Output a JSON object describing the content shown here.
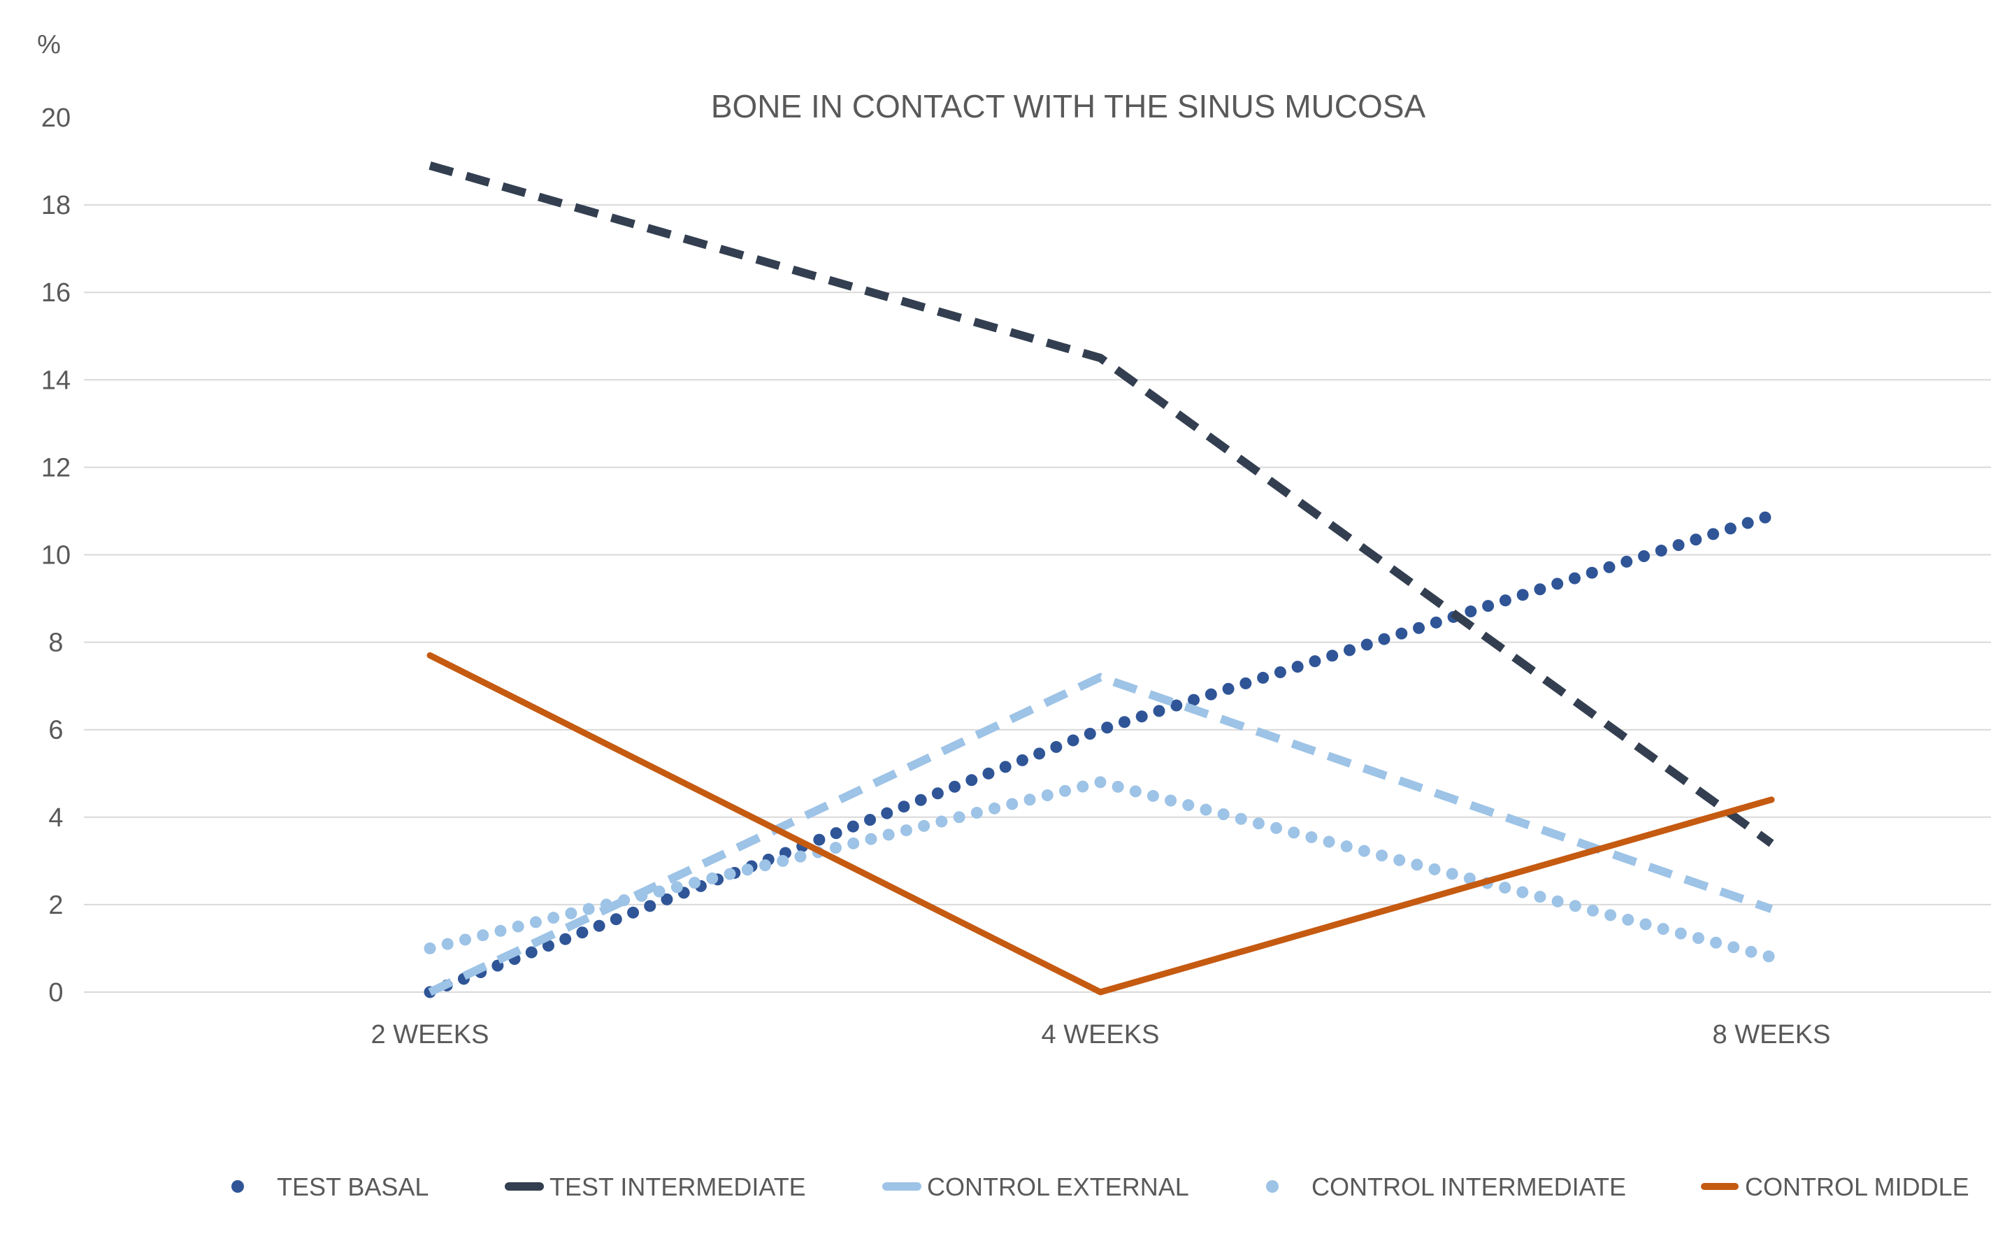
{
  "chart_data": {
    "type": "line",
    "title": "BONE IN CONTACT WITH THE SINUS MUCOSA",
    "ylabel": "%",
    "xlabel": "",
    "categories": [
      "2 WEEKS",
      "4 WEEKS",
      "8 WEEKS"
    ],
    "ylim": [
      0,
      20
    ],
    "yticks": [
      0,
      2,
      4,
      6,
      8,
      10,
      12,
      14,
      16,
      18,
      20
    ],
    "grid": true,
    "legend_position": "bottom",
    "series": [
      {
        "name": "TEST BASAL",
        "values": [
          0,
          6,
          10.9
        ],
        "color": "#2f5597",
        "style": "dotted"
      },
      {
        "name": "TEST INTERMEDIATE",
        "values": [
          18.9,
          14.5,
          3.4
        ],
        "color": "#333f50",
        "style": "dashed"
      },
      {
        "name": "CONTROL EXTERNAL",
        "values": [
          0,
          7.2,
          1.9
        ],
        "color": "#9dc3e6",
        "style": "dashed"
      },
      {
        "name": "CONTROL INTERMEDIATE",
        "values": [
          1,
          4.8,
          0.8
        ],
        "color": "#9dc3e6",
        "style": "dotted"
      },
      {
        "name": "CONTROL MIDDLE",
        "values": [
          7.7,
          0,
          4.4
        ],
        "color": "#c55a11",
        "style": "solid"
      }
    ]
  }
}
